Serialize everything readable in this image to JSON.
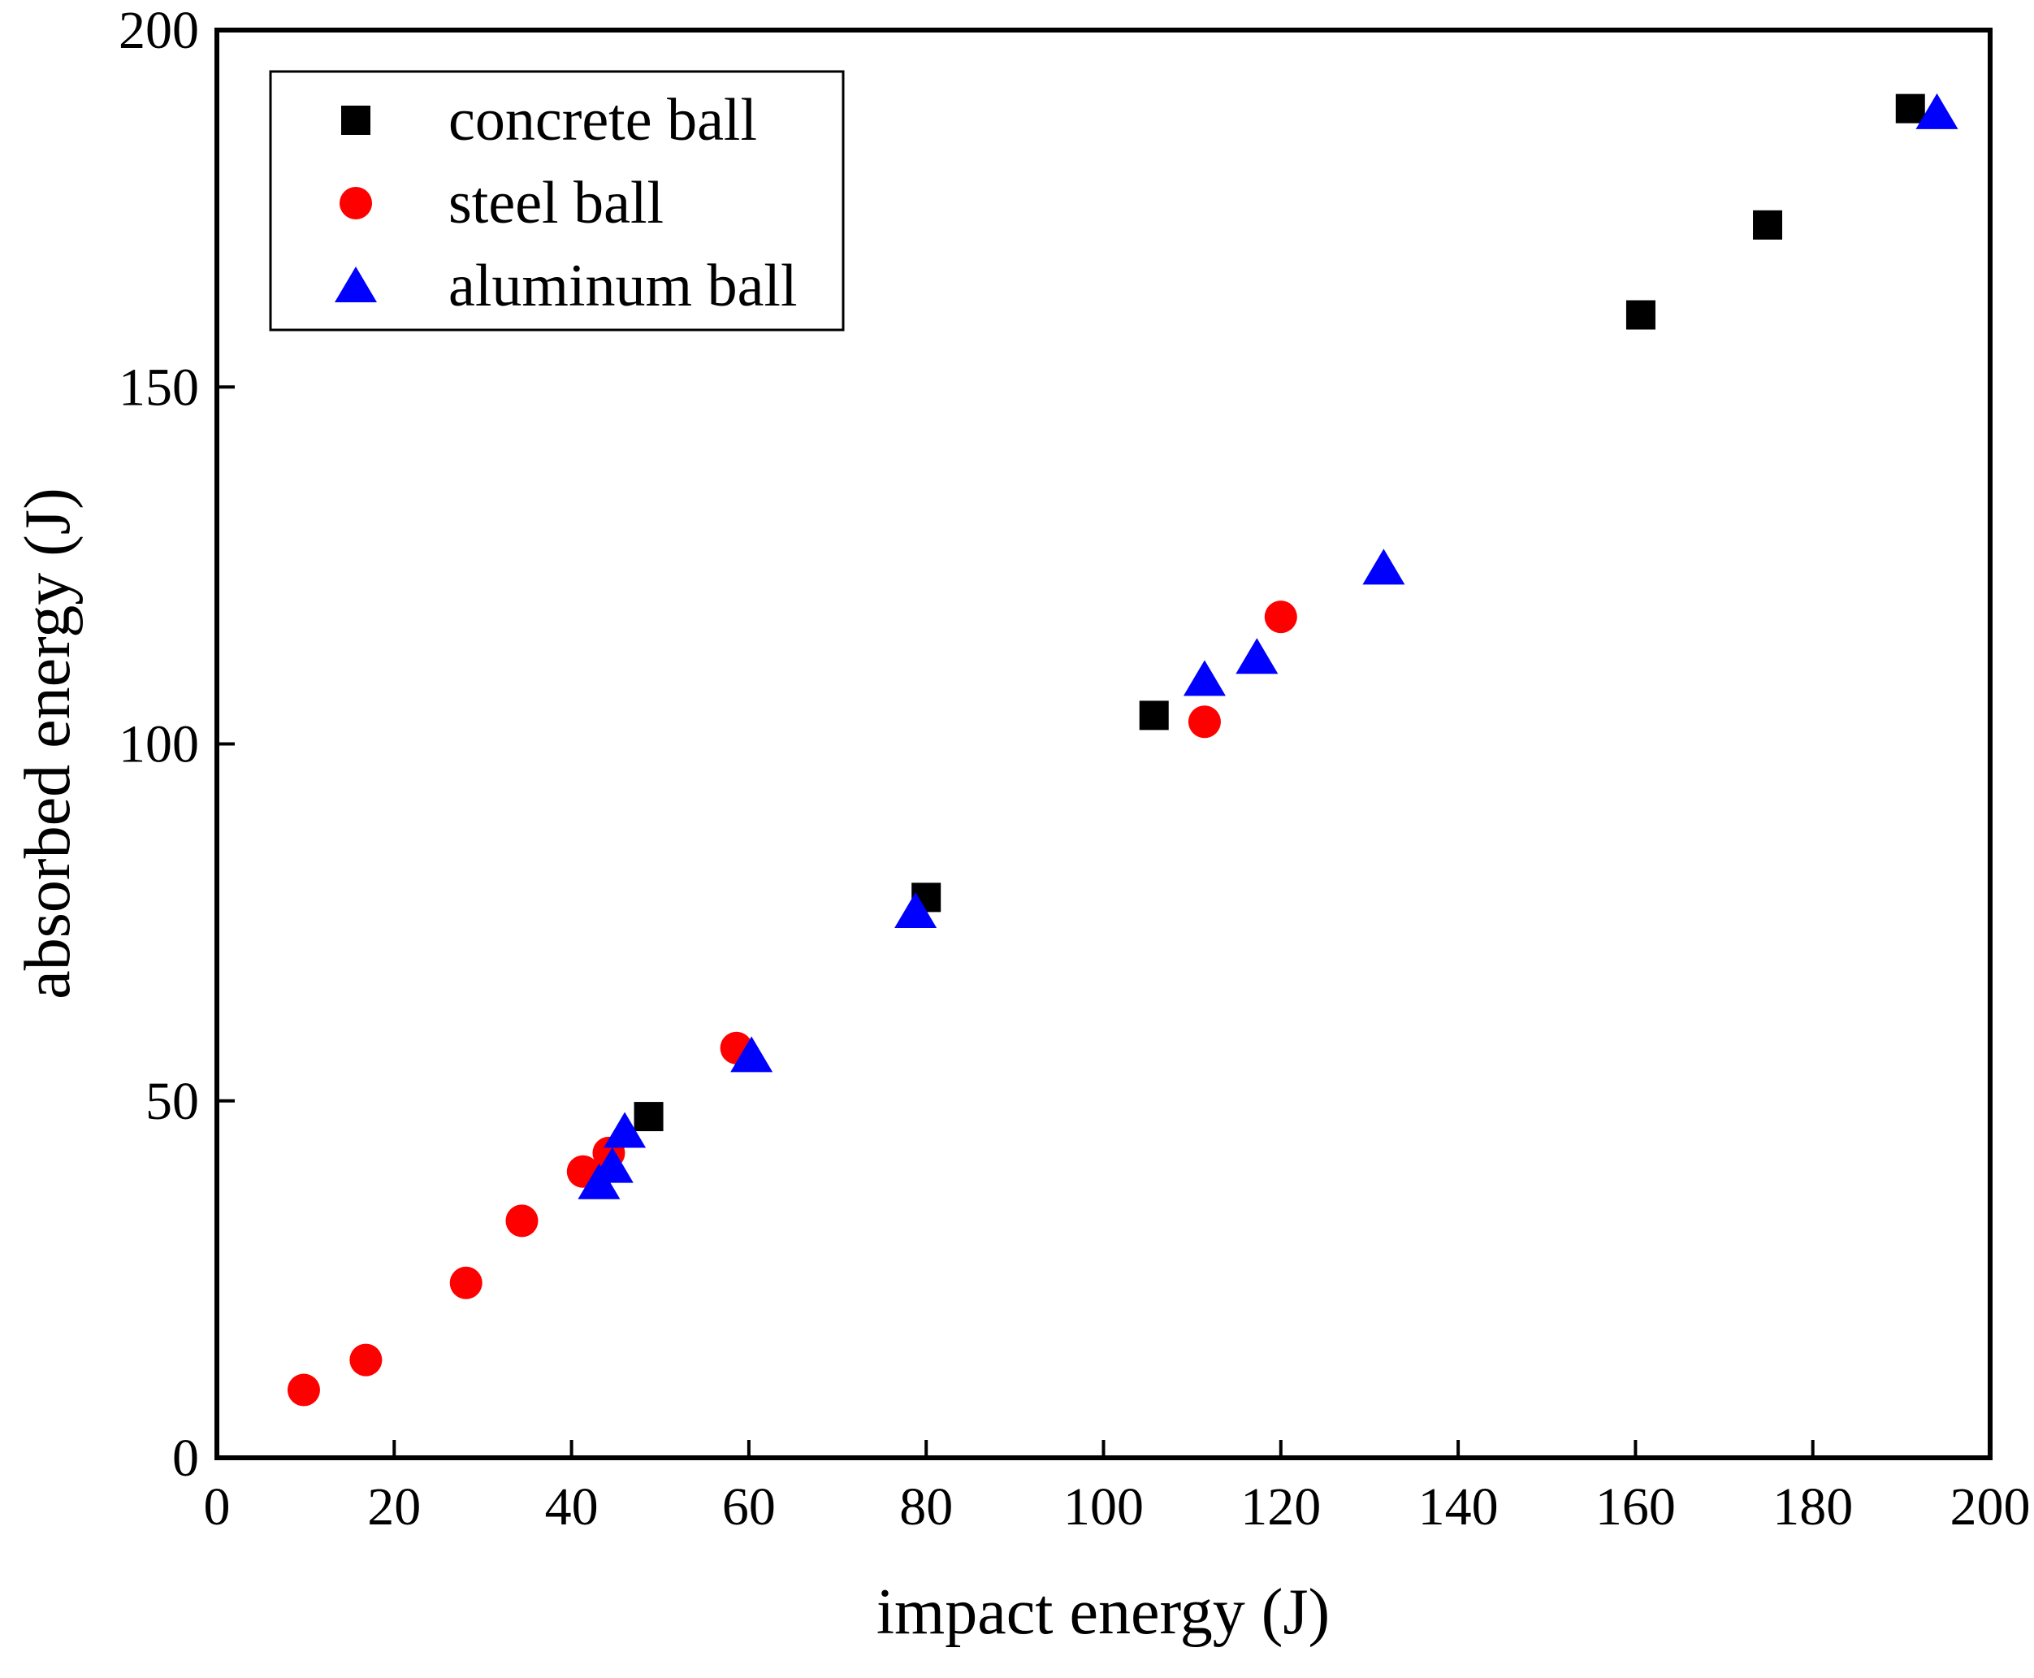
{
  "chart_data": {
    "type": "scatter",
    "title": "",
    "xlabel": "impact energy (J)",
    "ylabel": "absorbed energy (J)",
    "xlim": [
      0,
      200
    ],
    "ylim": [
      0,
      200
    ],
    "xticks": [
      0,
      20,
      40,
      60,
      80,
      100,
      120,
      140,
      160,
      180,
      200
    ],
    "yticks": [
      0,
      50,
      100,
      150,
      200
    ],
    "xtick_labels": [
      "0",
      "20",
      "40",
      "60",
      "80",
      "100",
      "120",
      "140",
      "160",
      "180",
      "200"
    ],
    "ytick_labels": [
      "0",
      "50",
      "100",
      "150",
      "200"
    ],
    "grid": false,
    "legend_position": "top-left",
    "series": [
      {
        "name": "concrete ball",
        "marker": "square",
        "color": "#000000",
        "points": [
          [
            48.7,
            47.8
          ],
          [
            80.0,
            78.5
          ],
          [
            105.7,
            104.0
          ],
          [
            160.6,
            160.1
          ],
          [
            174.9,
            172.7
          ],
          [
            191.0,
            189.0
          ]
        ]
      },
      {
        "name": "steel ball",
        "marker": "circle",
        "color": "#ff0000",
        "points": [
          [
            9.8,
            9.5
          ],
          [
            16.8,
            13.7
          ],
          [
            28.1,
            24.5
          ],
          [
            34.4,
            33.2
          ],
          [
            41.3,
            40.1
          ],
          [
            44.2,
            42.7
          ],
          [
            58.6,
            57.4
          ],
          [
            111.4,
            103.1
          ],
          [
            120.0,
            117.8
          ]
        ]
      },
      {
        "name": "aluminum ball",
        "marker": "triangle",
        "color": "#0000ff",
        "points": [
          [
            43.1,
            38.5
          ],
          [
            44.6,
            40.8
          ],
          [
            46.0,
            45.7
          ],
          [
            60.3,
            56.3
          ],
          [
            78.8,
            76.5
          ],
          [
            111.4,
            109.0
          ],
          [
            117.3,
            112.1
          ],
          [
            131.6,
            124.6
          ],
          [
            194.0,
            188.4
          ]
        ]
      }
    ]
  }
}
